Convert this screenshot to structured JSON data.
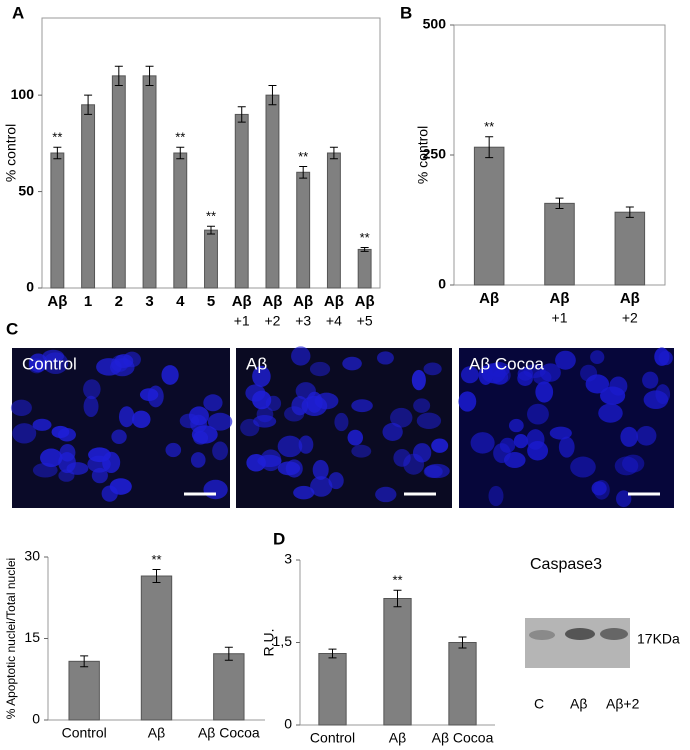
{
  "panel_labels": [
    "A",
    "B",
    "C",
    "D"
  ],
  "micrographs": [
    "Control",
    "Aβ",
    "Aβ Cocoa"
  ],
  "blot": {
    "title": "Caspase3",
    "marker": "17KDa",
    "lanes": [
      "C",
      "Aβ",
      "Aβ+2"
    ]
  },
  "chart_data": [
    {
      "type": "bar",
      "y_label": "% control",
      "color": "#808080",
      "categories": [
        [
          "Aβ"
        ],
        [
          "1"
        ],
        [
          "2"
        ],
        [
          "3"
        ],
        [
          "4"
        ],
        [
          "5"
        ],
        [
          "Aβ",
          "+1"
        ],
        [
          "Aβ",
          "+2"
        ],
        [
          "Aβ",
          "+3"
        ],
        [
          "Aβ",
          "+4"
        ],
        [
          "Aβ",
          "+5"
        ]
      ],
      "values": [
        70,
        95,
        110,
        110,
        70,
        30,
        90,
        100,
        60,
        70,
        20
      ],
      "errors": [
        3,
        5,
        5,
        5,
        3,
        2,
        4,
        5,
        3,
        3,
        1
      ],
      "significance": [
        "**",
        null,
        null,
        null,
        "**",
        "**",
        null,
        null,
        "**",
        null,
        "**"
      ],
      "ylim": [
        0,
        140
      ],
      "yticks": [
        0,
        50,
        100
      ]
    },
    {
      "type": "bar",
      "y_label": "% control",
      "color": "#808080",
      "categories": [
        [
          "Aβ"
        ],
        [
          "Aβ",
          "+1"
        ],
        [
          "Aβ",
          "+2"
        ]
      ],
      "values": [
        265,
        157,
        140
      ],
      "errors": [
        20,
        10,
        10
      ],
      "significance": [
        "**",
        null,
        null
      ],
      "ylim": [
        0,
        500
      ],
      "yticks": [
        0,
        250,
        500
      ]
    },
    {
      "type": "bar",
      "y_label": "% Apoptotic nuclei/Total nuclei",
      "color": "#808080",
      "categories": [
        [
          "Control"
        ],
        [
          "Aβ"
        ],
        [
          "Aβ Cocoa"
        ]
      ],
      "values": [
        10.8,
        26.5,
        12.2
      ],
      "errors": [
        1,
        1.2,
        1.2
      ],
      "significance": [
        null,
        "**",
        null
      ],
      "ylim": [
        0,
        30
      ],
      "yticks": [
        0,
        15,
        30
      ]
    },
    {
      "type": "bar",
      "y_label": "R.U.",
      "color": "#808080",
      "categories": [
        [
          "Control"
        ],
        [
          "Aβ"
        ],
        [
          "Aβ Cocoa"
        ]
      ],
      "values": [
        1.3,
        2.3,
        1.5
      ],
      "errors": [
        0.08,
        0.15,
        0.1
      ],
      "significance": [
        null,
        "**",
        null
      ],
      "ylim": [
        0,
        3
      ],
      "yticks": [
        0,
        {
          "value": 1.5,
          "label": "1,5"
        },
        3
      ]
    }
  ]
}
